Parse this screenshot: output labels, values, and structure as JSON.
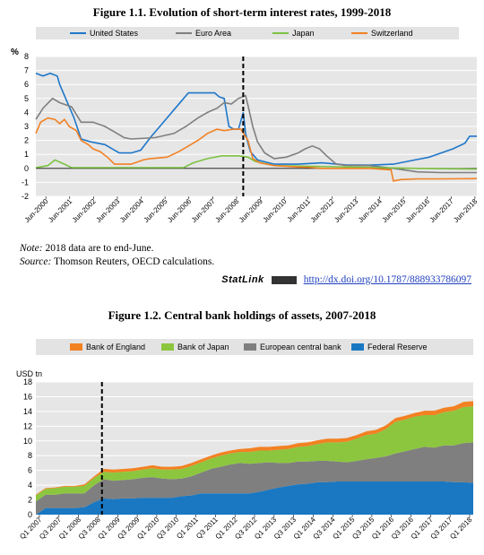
{
  "figures": [
    {
      "title": "Figure 1.1. Evolution of short-term interest rates, 1999-2018"
    },
    {
      "title": "Figure 1.2. Central bank holdings of assets, 2007-2018"
    }
  ],
  "notes": {
    "note_label": "Note:",
    "note_text": "2018 data are to end-June.",
    "source_label": "Source:",
    "source_text": "Thomson Reuters, OECD calculations."
  },
  "statlink": {
    "brand": "StatLink",
    "url": "http://dx.doi.org/10.1787/888933786097"
  },
  "chart_data": [
    {
      "type": "line",
      "ylabel": "%",
      "ylim": [
        -2,
        8
      ],
      "yticks": [
        -2,
        -1,
        0,
        1,
        2,
        3,
        4,
        5,
        6,
        7,
        8
      ],
      "x_start": 2000,
      "x_end": 2018.5,
      "xtick_labels": [
        "Jun-2000",
        "Jun-2001",
        "Jun-2002",
        "Jun-2003",
        "Jun-2004",
        "Jun-2005",
        "Jun-2006",
        "Jun-2007",
        "Jun-2008",
        "Jun-2009",
        "Jun-2010",
        "Jun-2011",
        "Jun-2012",
        "Jun-2013",
        "Jun-2014",
        "Jun-2015",
        "Jun-2016",
        "Jun-2017",
        "Jun-2018"
      ],
      "xtick_positions": [
        2000.42,
        2001.42,
        2002.42,
        2003.42,
        2004.42,
        2005.42,
        2006.42,
        2007.42,
        2008.42,
        2009.42,
        2010.42,
        2011.42,
        2012.42,
        2013.42,
        2014.42,
        2015.42,
        2016.42,
        2017.42,
        2018.42
      ],
      "marker_line_x": 2008.7,
      "grid": true,
      "legend_position": "top",
      "series": [
        {
          "name": "United States",
          "color": "#1f77c9",
          "x": [
            2000,
            2000.3,
            2000.6,
            2000.9,
            2001.0,
            2001.3,
            2001.6,
            2001.9,
            2002.3,
            2002.9,
            2003.5,
            2004.0,
            2004.4,
            2004.8,
            2005.3,
            2005.8,
            2006.4,
            2006.8,
            2007.5,
            2007.7,
            2007.9,
            2008.1,
            2008.3,
            2008.5,
            2008.7,
            2008.8,
            2008.9,
            2009.0,
            2009.3,
            2010,
            2011,
            2012,
            2013,
            2014,
            2015,
            2015.9,
            2016.5,
            2017.0,
            2017.5,
            2018.0,
            2018.2,
            2018.5
          ],
          "y": [
            6.8,
            6.6,
            6.8,
            6.6,
            6.0,
            4.8,
            3.6,
            2.1,
            1.9,
            1.7,
            1.1,
            1.1,
            1.3,
            2.2,
            3.2,
            4.2,
            5.4,
            5.4,
            5.4,
            5.1,
            5.0,
            3.0,
            2.8,
            2.8,
            4.0,
            2.5,
            1.8,
            1.2,
            0.6,
            0.3,
            0.3,
            0.4,
            0.25,
            0.23,
            0.3,
            0.6,
            0.8,
            1.1,
            1.4,
            1.8,
            2.3,
            2.3
          ]
        },
        {
          "name": "Euro Area",
          "color": "#7f7f7f",
          "x": [
            2000,
            2000.3,
            2000.7,
            2001.0,
            2001.5,
            2001.9,
            2002.4,
            2002.9,
            2003.3,
            2003.7,
            2004.0,
            2005.0,
            2005.8,
            2006.3,
            2006.8,
            2007.2,
            2007.6,
            2007.9,
            2008.2,
            2008.5,
            2008.8,
            2008.9,
            2009.1,
            2009.3,
            2009.6,
            2010.0,
            2010.5,
            2011.0,
            2011.3,
            2011.6,
            2011.9,
            2012.2,
            2012.6,
            2013,
            2014,
            2015,
            2016,
            2017,
            2018.5
          ],
          "y": [
            3.5,
            4.3,
            5.0,
            4.7,
            4.4,
            3.3,
            3.3,
            3.0,
            2.6,
            2.2,
            2.1,
            2.2,
            2.5,
            3.0,
            3.6,
            4.0,
            4.3,
            4.7,
            4.6,
            5.0,
            5.2,
            4.5,
            3.0,
            1.9,
            1.1,
            0.7,
            0.8,
            1.1,
            1.4,
            1.6,
            1.4,
            0.9,
            0.3,
            0.22,
            0.2,
            0.0,
            -0.25,
            -0.3,
            -0.3
          ]
        },
        {
          "name": "Japan",
          "color": "#7cc242",
          "x": [
            2000,
            2000.5,
            2000.8,
            2001.2,
            2001.5,
            2002,
            2005,
            2006.2,
            2006.6,
            2007.2,
            2007.8,
            2008.5,
            2008.9,
            2009.2,
            2010,
            2013,
            2016,
            2018.5
          ],
          "y": [
            0.05,
            0.2,
            0.6,
            0.3,
            0.05,
            0.05,
            0.05,
            0.05,
            0.4,
            0.7,
            0.9,
            0.9,
            0.8,
            0.5,
            0.2,
            0.1,
            0.0,
            -0.05
          ]
        },
        {
          "name": "Switzerland",
          "color": "#f28122",
          "x": [
            2000,
            2000.2,
            2000.5,
            2000.8,
            2001.0,
            2001.2,
            2001.4,
            2001.7,
            2001.9,
            2002.2,
            2002.4,
            2002.7,
            2003.0,
            2003.3,
            2004.0,
            2004.5,
            2004.8,
            2005.5,
            2006.0,
            2006.4,
            2006.8,
            2007.2,
            2007.6,
            2007.9,
            2008.3,
            2008.6,
            2008.9,
            2009.1,
            2009.4,
            2010,
            2011,
            2011.6,
            2012,
            2013,
            2014,
            2014.9,
            2015.0,
            2015.3,
            2016,
            2017,
            2018.5
          ],
          "y": [
            2.5,
            3.3,
            3.6,
            3.5,
            3.2,
            3.5,
            3.0,
            2.7,
            2.0,
            1.7,
            1.4,
            1.2,
            0.8,
            0.3,
            0.3,
            0.6,
            0.7,
            0.8,
            1.2,
            1.6,
            2.0,
            2.5,
            2.8,
            2.7,
            2.8,
            2.8,
            2.0,
            0.7,
            0.4,
            0.2,
            0.1,
            0.05,
            0.0,
            0.0,
            0.0,
            -0.1,
            -0.9,
            -0.8,
            -0.75,
            -0.75,
            -0.73
          ]
        }
      ]
    },
    {
      "type": "area",
      "stacked": true,
      "ylabel": "USD tn",
      "ylim": [
        0,
        18
      ],
      "yticks": [
        0,
        2,
        4,
        6,
        8,
        10,
        12,
        14,
        16,
        18
      ],
      "x_start": 2007.0,
      "x_end": 2018.25,
      "xtick_labels": [
        "Q1 2007",
        "Q3 2007",
        "Q1 2008",
        "Q3 2008",
        "Q1 2009",
        "Q3 2009",
        "Q1 2010",
        "Q3 2010",
        "Q1 2011",
        "Q3 2011",
        "Q1 2012",
        "Q3 2012",
        "Q1 2013",
        "Q3 2013",
        "Q1 2014",
        "Q3 2014",
        "Q1 2015",
        "Q3 2015",
        "Q1 2016",
        "Q3 2016",
        "Q1 2017",
        "Q3 2017",
        "Q1 2018"
      ],
      "marker_line_x": 2008.7,
      "grid": true,
      "legend_position": "top",
      "x": [
        2007.0,
        2007.25,
        2007.5,
        2007.75,
        2008.0,
        2008.25,
        2008.5,
        2008.75,
        2009.0,
        2009.25,
        2009.5,
        2009.75,
        2010.0,
        2010.25,
        2010.5,
        2010.75,
        2011.0,
        2011.25,
        2011.5,
        2011.75,
        2012.0,
        2012.25,
        2012.5,
        2012.75,
        2013.0,
        2013.25,
        2013.5,
        2013.75,
        2014.0,
        2014.25,
        2014.5,
        2014.75,
        2015.0,
        2015.25,
        2015.5,
        2015.75,
        2016.0,
        2016.25,
        2016.5,
        2016.75,
        2017.0,
        2017.25,
        2017.5,
        2017.75,
        2018.0,
        2018.25
      ],
      "series": [
        {
          "name": "Federal Reserve",
          "color": "#1a78c2",
          "values": [
            0.0,
            0.9,
            0.9,
            0.9,
            0.9,
            1.0,
            1.7,
            2.2,
            2.1,
            2.2,
            2.2,
            2.3,
            2.3,
            2.3,
            2.3,
            2.5,
            2.6,
            2.9,
            2.9,
            2.9,
            2.9,
            2.9,
            2.9,
            3.1,
            3.4,
            3.7,
            3.9,
            4.1,
            4.2,
            4.4,
            4.4,
            4.5,
            4.5,
            4.5,
            4.5,
            4.5,
            4.5,
            4.5,
            4.5,
            4.5,
            4.5,
            4.5,
            4.5,
            4.4,
            4.4,
            4.3
          ]
        },
        {
          "name": "European central bank",
          "color": "#7f7f7f",
          "values": [
            1.8,
            1.8,
            1.8,
            2.0,
            2.0,
            1.9,
            2.3,
            2.6,
            2.5,
            2.5,
            2.6,
            2.7,
            2.8,
            2.6,
            2.5,
            2.4,
            2.6,
            2.8,
            3.3,
            3.6,
            3.9,
            4.1,
            4.0,
            3.9,
            3.7,
            3.3,
            3.1,
            3.1,
            3.0,
            2.9,
            2.9,
            2.7,
            2.6,
            2.8,
            3.0,
            3.2,
            3.4,
            3.8,
            4.1,
            4.4,
            4.7,
            4.6,
            4.9,
            5.0,
            5.3,
            5.5
          ]
        },
        {
          "name": "Bank of Japan",
          "color": "#8cc63f",
          "values": [
            0.8,
            0.8,
            0.9,
            0.9,
            0.9,
            1.0,
            1.0,
            1.0,
            1.1,
            1.1,
            1.1,
            1.1,
            1.2,
            1.2,
            1.3,
            1.3,
            1.4,
            1.4,
            1.4,
            1.5,
            1.5,
            1.5,
            1.6,
            1.7,
            1.6,
            1.8,
            1.9,
            2.0,
            2.1,
            2.3,
            2.5,
            2.6,
            2.8,
            3.0,
            3.3,
            3.3,
            3.7,
            4.3,
            4.3,
            4.4,
            4.3,
            4.4,
            4.5,
            4.7,
            4.9,
            4.9
          ]
        },
        {
          "name": "Bank of England",
          "color": "#f28122",
          "values": [
            0.1,
            0.1,
            0.1,
            0.1,
            0.1,
            0.2,
            0.2,
            0.4,
            0.4,
            0.4,
            0.4,
            0.4,
            0.4,
            0.4,
            0.4,
            0.4,
            0.4,
            0.4,
            0.4,
            0.4,
            0.4,
            0.4,
            0.5,
            0.5,
            0.5,
            0.5,
            0.5,
            0.5,
            0.5,
            0.5,
            0.5,
            0.5,
            0.5,
            0.5,
            0.5,
            0.5,
            0.5,
            0.5,
            0.5,
            0.5,
            0.6,
            0.6,
            0.6,
            0.6,
            0.7,
            0.7
          ]
        }
      ]
    }
  ]
}
